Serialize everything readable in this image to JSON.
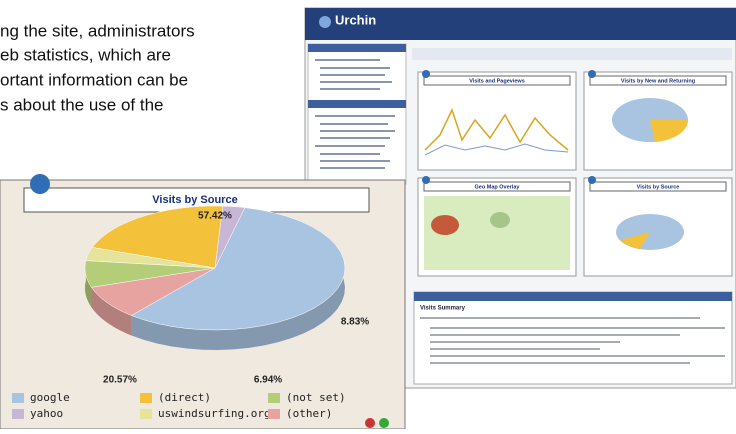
{
  "text_fragment": {
    "lines": [
      "ng the site, administrators",
      "eb statistics, which are",
      "ortant information can be",
      "s about the use of the"
    ]
  },
  "screenshot": {
    "logo": "Urchin",
    "panels": [
      "Visits and Pageviews",
      "Visits by New and Returning",
      "Geo Map Overlay",
      "Visits by Source"
    ],
    "summary_title": "Visits Summary"
  },
  "chart_data": {
    "type": "pie",
    "title": "Visits by Source",
    "categories": [
      "google",
      "yahoo",
      "(direct)",
      "uswindsurfing.org",
      "(not set)",
      "(other)"
    ],
    "values": [
      57.42,
      2.74,
      20.57,
      3.5,
      6.94,
      8.83
    ],
    "value_labels": [
      "57.42%",
      null,
      "20.57%",
      null,
      "6.94%",
      "8.83%"
    ],
    "colors": [
      "#a9c4e0",
      "#c8b6d6",
      "#f4c23a",
      "#e6e39a",
      "#b3cd78",
      "#e6a3a0"
    ]
  }
}
